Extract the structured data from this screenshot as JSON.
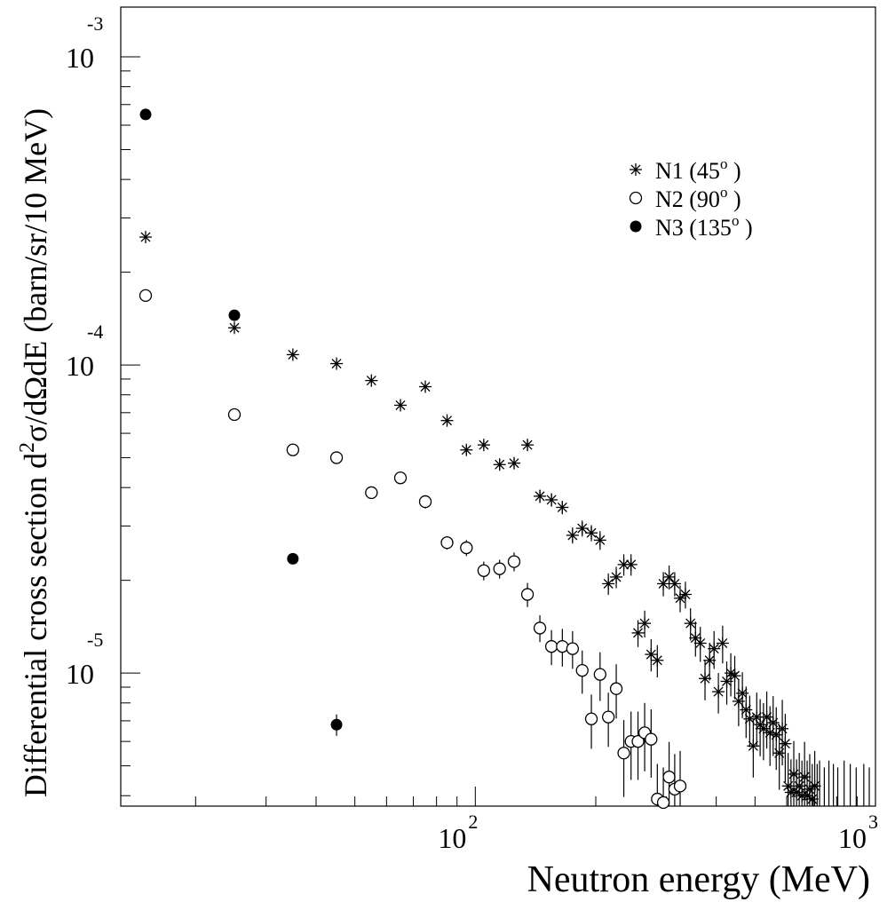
{
  "chart_data": {
    "type": "scatter",
    "xlabel": "Neutron energy (MeV)",
    "ylabel_prefix": "Differential cross section d",
    "ylabel_sup": "2",
    "ylabel_suffix": "σ/dΩdE (barn/sr/10 MeV)",
    "x_scale": "log",
    "y_scale": "log",
    "xlim": [
      13,
      1000
    ],
    "ylim": [
      3.7e-06,
      0.00145
    ],
    "x_ticks": [
      {
        "base": "10",
        "exp": "2",
        "value": 100
      },
      {
        "base": "10",
        "exp": "3",
        "value": 1000
      }
    ],
    "y_ticks": [
      {
        "base": "10",
        "exp": "-3",
        "value": 0.001
      },
      {
        "base": "10",
        "exp": "-4",
        "value": 0.0001
      },
      {
        "base": "10",
        "exp": "-5",
        "value": 1e-05
      }
    ],
    "grid": false,
    "legend_position": "top-right",
    "series": [
      {
        "name": "N1 (45",
        "name_sup": "o",
        "name_end": " )",
        "marker": "asterisk",
        "points": [
          [
            15,
            0.00026,
            0.01
          ],
          [
            25,
            0.000132,
            0.02
          ],
          [
            35,
            0.000108,
            0.02
          ],
          [
            45,
            0.000101,
            0.02
          ],
          [
            55,
            8.9e-05,
            0.02
          ],
          [
            65,
            7.4e-05,
            0.02
          ],
          [
            75,
            8.5e-05,
            0.02
          ],
          [
            85,
            6.6e-05,
            0.03
          ],
          [
            95,
            5.3e-05,
            0.03
          ],
          [
            105,
            5.5e-05,
            0.03
          ],
          [
            115,
            4.75e-05,
            0.04
          ],
          [
            125,
            4.8e-05,
            0.04
          ],
          [
            135,
            5.5e-05,
            0.04
          ],
          [
            145,
            3.75e-05,
            0.05
          ],
          [
            155,
            3.65e-05,
            0.05
          ],
          [
            165,
            3.45e-05,
            0.05
          ],
          [
            175,
            2.8e-05,
            0.06
          ],
          [
            185,
            2.95e-05,
            0.06
          ],
          [
            195,
            2.85e-05,
            0.06
          ],
          [
            205,
            2.7e-05,
            0.07
          ],
          [
            215,
            1.95e-05,
            0.08
          ],
          [
            225,
            2.05e-05,
            0.08
          ],
          [
            235,
            2.25e-05,
            0.08
          ],
          [
            245,
            2.25e-05,
            0.08
          ],
          [
            255,
            1.35e-05,
            0.1
          ],
          [
            265,
            1.45e-05,
            0.1
          ],
          [
            275,
            1.15e-05,
            0.12
          ],
          [
            285,
            1.1e-05,
            0.12
          ],
          [
            295,
            1.95e-05,
            0.09
          ],
          [
            305,
            2.05e-05,
            0.09
          ],
          [
            315,
            1.95e-05,
            0.09
          ],
          [
            325,
            1.75e-05,
            0.1
          ],
          [
            335,
            1.8e-05,
            0.1
          ],
          [
            345,
            1.45e-05,
            0.12
          ],
          [
            355,
            1.3e-05,
            0.13
          ],
          [
            365,
            1.25e-05,
            0.13
          ],
          [
            375,
            9.6e-06,
            0.15
          ],
          [
            385,
            1.1e-05,
            0.14
          ],
          [
            395,
            1.2e-05,
            0.14
          ],
          [
            405,
            8.7e-06,
            0.15
          ],
          [
            415,
            1.25e-05,
            0.14
          ],
          [
            425,
            9.4e-06,
            0.16
          ],
          [
            435,
            1e-05,
            0.16
          ],
          [
            445,
            9.8e-06,
            0.16
          ],
          [
            455,
            8.1e-06,
            0.17
          ],
          [
            465,
            8.6e-06,
            0.17
          ],
          [
            475,
            7.6e-06,
            0.19
          ],
          [
            485,
            7.1e-06,
            0.19
          ],
          [
            495,
            5.8e-06,
            0.21
          ],
          [
            505,
            7.2e-06,
            0.2
          ],
          [
            515,
            6.8e-06,
            0.21
          ],
          [
            525,
            6.6e-06,
            0.21
          ],
          [
            535,
            7.2e-06,
            0.21
          ],
          [
            545,
            6.4e-06,
            0.22
          ],
          [
            555,
            6.9e-06,
            0.22
          ],
          [
            565,
            6.3e-06,
            0.23
          ],
          [
            575,
            5.5e-06,
            0.24
          ],
          [
            585,
            6.6e-06,
            0.24
          ],
          [
            595,
            5.9e-06,
            0.25
          ],
          [
            605,
            4.3e-06,
            0.28
          ],
          [
            615,
            4.1e-06,
            0.28
          ],
          [
            625,
            4.7e-06,
            0.28
          ],
          [
            635,
            4.1e-06,
            0.28
          ],
          [
            645,
            4.3e-06,
            0.28
          ],
          [
            655,
            4e-06,
            0.3
          ],
          [
            665,
            4.6e-06,
            0.3
          ],
          [
            675,
            4e-06,
            0.3
          ],
          [
            685,
            4.2e-06,
            0.3
          ],
          [
            695,
            3.9e-06,
            0.3
          ],
          [
            705,
            4.3e-06,
            0.3
          ]
        ]
      },
      {
        "name": "N2 (90",
        "name_sup": "o",
        "name_end": " )",
        "marker": "open-circle",
        "points": [
          [
            15,
            0.000168,
            0.02
          ],
          [
            25,
            6.9e-05,
            0.02
          ],
          [
            35,
            5.3e-05,
            0.03
          ],
          [
            45,
            5e-05,
            0.03
          ],
          [
            55,
            3.85e-05,
            0.04
          ],
          [
            65,
            4.3e-05,
            0.04
          ],
          [
            75,
            3.6e-05,
            0.05
          ],
          [
            85,
            2.65e-05,
            0.05
          ],
          [
            95,
            2.55e-05,
            0.06
          ],
          [
            105,
            2.15e-05,
            0.07
          ],
          [
            115,
            2.18e-05,
            0.07
          ],
          [
            125,
            2.3e-05,
            0.07
          ],
          [
            135,
            1.8e-05,
            0.09
          ],
          [
            145,
            1.4e-05,
            0.1
          ],
          [
            155,
            1.22e-05,
            0.13
          ],
          [
            165,
            1.22e-05,
            0.14
          ],
          [
            175,
            1.2e-05,
            0.14
          ],
          [
            185,
            1.02e-05,
            0.16
          ],
          [
            195,
            7.1e-06,
            0.2
          ],
          [
            205,
            9.9e-06,
            0.18
          ],
          [
            215,
            7.2e-06,
            0.2
          ],
          [
            225,
            8.9e-06,
            0.2
          ],
          [
            235,
            5.5e-06,
            0.28
          ],
          [
            245,
            6e-06,
            0.25
          ],
          [
            255,
            6e-06,
            0.25
          ],
          [
            265,
            6.4e-06,
            0.25
          ],
          [
            275,
            6.1e-06,
            0.25
          ],
          [
            285,
            3.9e-06,
            0.3
          ],
          [
            295,
            3.8e-06,
            0.3
          ],
          [
            305,
            4.6e-06,
            0.3
          ],
          [
            315,
            4.2e-06,
            0.3
          ],
          [
            325,
            4.3e-06,
            0.3
          ]
        ]
      },
      {
        "name": "N3 (135",
        "name_sup": "o",
        "name_end": " )",
        "marker": "filled-circle",
        "points": [
          [
            15,
            0.00065,
            0.015
          ],
          [
            25,
            0.000145,
            0.02
          ],
          [
            35,
            2.35e-05,
            0.04
          ],
          [
            45,
            6.8e-06,
            0.08
          ]
        ]
      }
    ],
    "no_marker_bars": [
      [
        715,
        3.9e-06,
        0.3
      ],
      [
        725,
        4e-06,
        0.3
      ],
      [
        745,
        3.8e-06,
        0.3
      ],
      [
        765,
        4e-06,
        0.3
      ],
      [
        785,
        3.9e-06,
        0.3
      ],
      [
        805,
        3.8e-06,
        0.3
      ],
      [
        835,
        4e-06,
        0.3
      ],
      [
        865,
        3.9e-06,
        0.3
      ],
      [
        895,
        3.8e-06,
        0.3
      ],
      [
        935,
        3.9e-06,
        0.3
      ],
      [
        965,
        3.8e-06,
        0.3
      ]
    ]
  }
}
